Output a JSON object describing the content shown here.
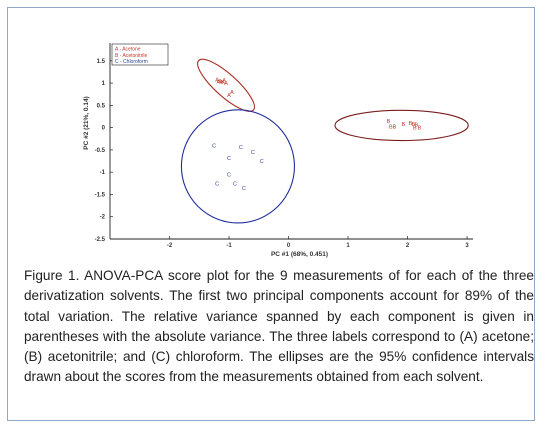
{
  "chart_data": {
    "type": "scatter",
    "title": "",
    "xlabel": "PC #1 (68%, 0.451)",
    "ylabel": "PC #2 (21%, 0.14)",
    "xlim": [
      -3.0,
      3.1
    ],
    "ylim": [
      -2.5,
      1.9
    ],
    "xticks": [
      -2,
      -1,
      0,
      1,
      2,
      3
    ],
    "xtick_labels": [
      "-2",
      "-1",
      "0",
      "1",
      "2",
      "3"
    ],
    "yticks": [
      1.5,
      1,
      0.5,
      0,
      -0.5,
      -1,
      -1.5,
      -2,
      -2.5
    ],
    "ytick_labels": [
      "1.5",
      "1",
      "0.5",
      "0",
      "-0.5",
      "-1",
      "-1.5",
      "-2",
      "-2.5"
    ],
    "grid": false,
    "legend": {
      "placement": "top-left",
      "entries": [
        "A - Acetone",
        "B - Acetonitrile",
        "C - Chloroform"
      ]
    },
    "series": [
      {
        "name": "A - Acetone",
        "marker": "A",
        "color": "#c0392b",
        "x": [
          -1.2,
          -1.15,
          -1.1,
          -1.05,
          -1.13,
          -0.95,
          -1.0,
          -1.08,
          -1.18
        ],
        "y": [
          1.08,
          1.05,
          1.03,
          1.0,
          1.02,
          0.8,
          0.73,
          1.07,
          1.04
        ]
      },
      {
        "name": "B - Acetonitrile",
        "marker": "B",
        "color": "#c0392b",
        "x": [
          1.68,
          1.72,
          1.78,
          1.93,
          2.05,
          2.1,
          2.15,
          2.12,
          2.2
        ],
        "y": [
          0.15,
          0.03,
          0.03,
          0.08,
          0.1,
          0.08,
          0.07,
          0.0,
          0.0
        ]
      },
      {
        "name": "C - Chloroform",
        "marker": "C",
        "color": "#2c3e9e",
        "x": [
          -1.25,
          -1.0,
          -0.8,
          -0.6,
          -0.45,
          -1.0,
          -0.9,
          -0.75,
          -1.2
        ],
        "y": [
          -0.4,
          -0.68,
          -0.43,
          -0.55,
          -0.75,
          -1.05,
          -1.25,
          -1.35,
          -1.25
        ]
      }
    ],
    "ellipses": [
      {
        "series": "A - Acetone",
        "color": "#a93226",
        "cx": -1.05,
        "cy": 0.95,
        "rx": 0.62,
        "ry": 0.25,
        "angle_deg": 42
      },
      {
        "series": "B - Acetonitrile",
        "color": "#7b1e1e",
        "cx": 1.9,
        "cy": 0.05,
        "rx": 1.12,
        "ry": 0.34,
        "angle_deg": 0
      },
      {
        "series": "C - Chloroform",
        "color": "#1f2f9c",
        "cx": -0.85,
        "cy": -0.87,
        "rx": 0.95,
        "ry": 1.27,
        "angle_deg": 0
      }
    ]
  },
  "caption": {
    "text": "Figure 1.  ANOVA-PCA score plot for the 9 measurements of for each of the three derivatization solvents.  The first two principal components account for 89% of the total variation.  The relative variance spanned by each component is given in parentheses with the absolute variance.  The three labels correspond to (A) acetone; (B) acetonitrile; and (C) chloroform. The ellipses are the 95% confidence intervals drawn about the scores from the measurements obtained from each solvent."
  }
}
